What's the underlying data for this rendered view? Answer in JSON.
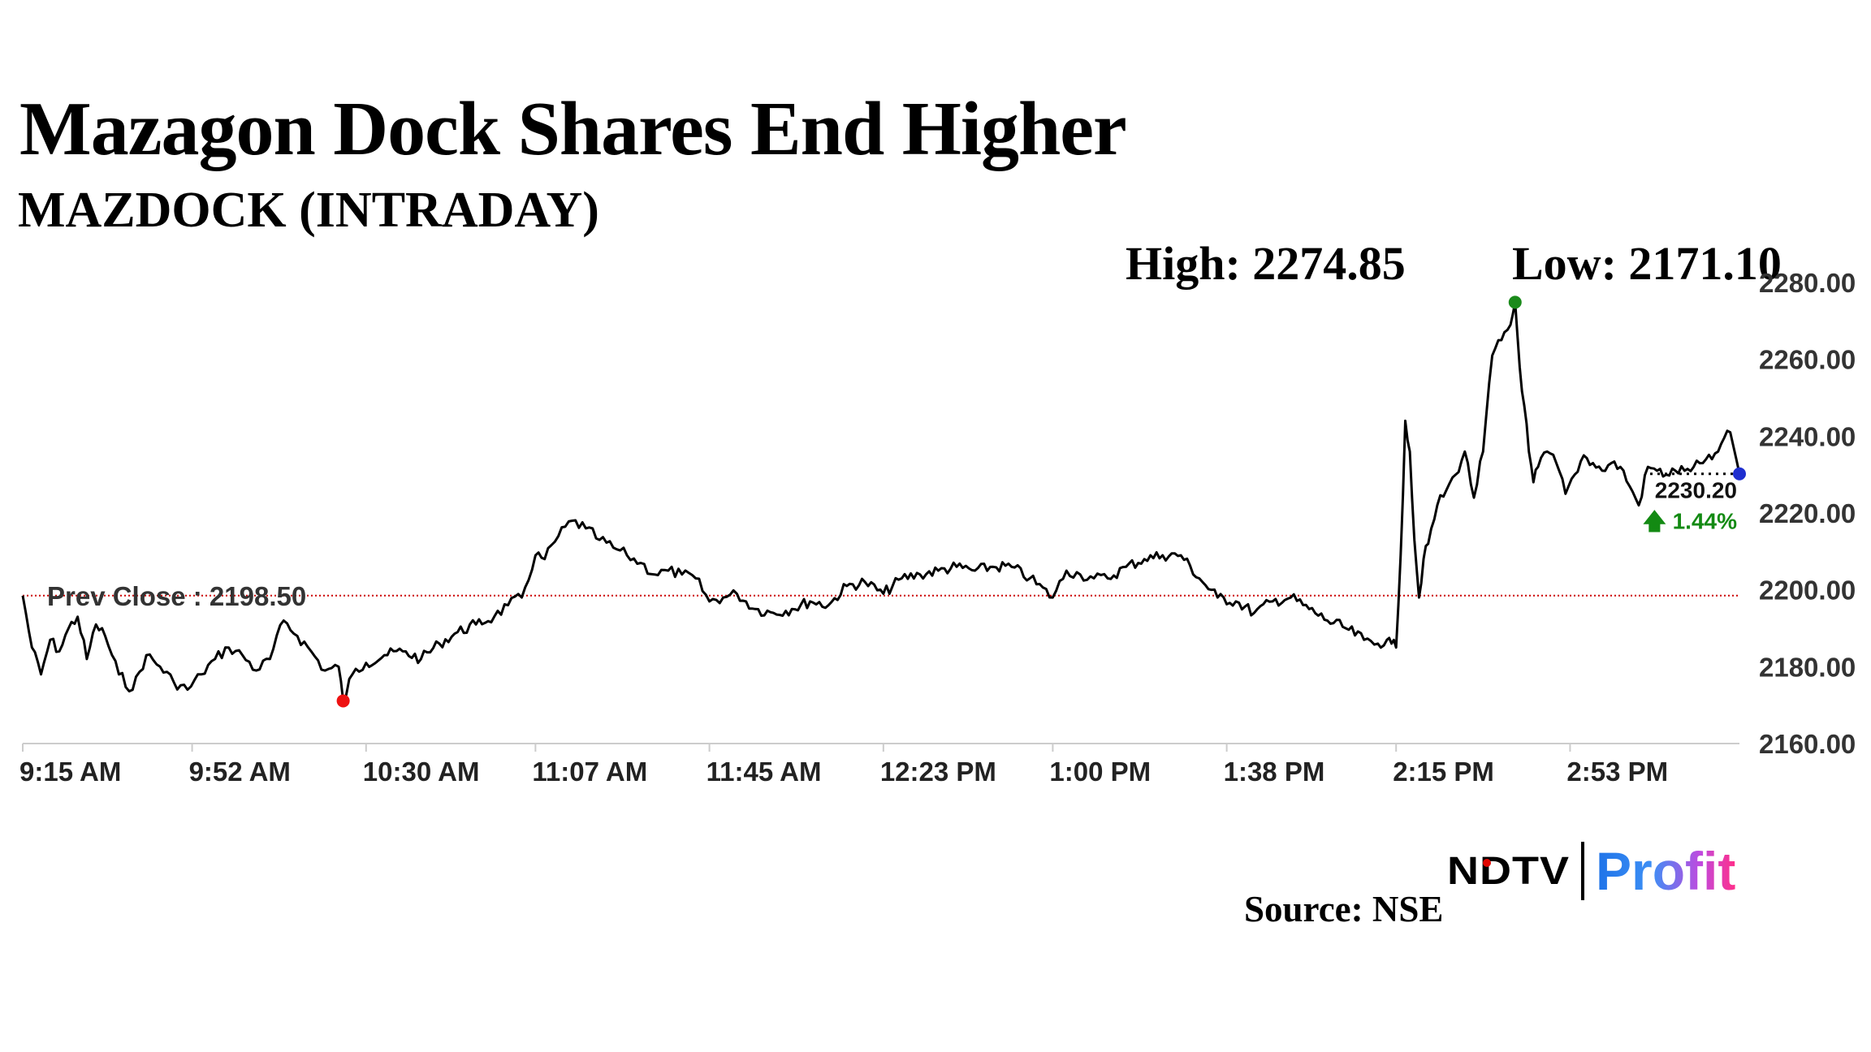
{
  "header": {
    "title": "Mazagon Dock Shares End Higher",
    "subtitle": "MAZDOCK (INTRADAY)",
    "high_label": "High: 2274.85",
    "low_label": "Low: 2171.10"
  },
  "footer": {
    "logo_ndtv": "NDTV",
    "logo_profit": "Profit",
    "source": "Source: NSE"
  },
  "colors": {
    "line": "#000000",
    "prev_close": "#cc0000",
    "high_marker": "#1a8a1a",
    "low_marker": "#ee1111",
    "last_marker": "#1f2fcf",
    "change_up": "#138a13",
    "axis": "#cccccc"
  },
  "chart_data": {
    "type": "line",
    "title": "Mazagon Dock Shares End Higher",
    "subtitle": "MAZDOCK (INTRADAY)",
    "xlabel": "",
    "ylabel": "",
    "ylim": [
      2160,
      2280
    ],
    "y_ticks": [
      "2280.00",
      "2260.00",
      "2240.00",
      "2220.00",
      "2200.00",
      "2180.00",
      "2160.00"
    ],
    "x_ticks": [
      "9:15 AM",
      "9:52 AM",
      "10:30 AM",
      "11:07 AM",
      "11:45 AM",
      "12:23 PM",
      "1:00 PM",
      "1:38 PM",
      "2:15 PM",
      "2:53 PM"
    ],
    "time_range": [
      "9:15 AM",
      "3:30 PM"
    ],
    "grid": false,
    "prev_close": {
      "label": "Prev Close : 2198.50",
      "value": 2198.5
    },
    "high": {
      "value": 2274.85,
      "time": "2:41 PM"
    },
    "low": {
      "value": 2171.1,
      "time": "10:25 AM"
    },
    "last": {
      "label": "2230.20",
      "value": 2230.2,
      "time": "3:30 PM"
    },
    "change": {
      "label": "1.44%",
      "direction": "up"
    },
    "series": [
      {
        "x": [
          "9:15",
          "9:17",
          "9:19",
          "9:21",
          "9:23",
          "9:25",
          "9:27",
          "9:29",
          "9:31",
          "9:33",
          "9:36",
          "9:39",
          "9:42",
          "9:45",
          "9:48",
          "9:51",
          "9:54",
          "9:57",
          "10:00",
          "10:03",
          "10:06",
          "10:09",
          "10:12",
          "10:15",
          "10:18",
          "10:21",
          "10:24",
          "10:25",
          "10:27",
          "10:30",
          "10:34",
          "10:38",
          "10:42",
          "10:46",
          "10:50",
          "10:54",
          "10:58",
          "11:01",
          "11:04",
          "11:07",
          "11:09",
          "11:12",
          "11:15",
          "11:18",
          "11:21",
          "11:24",
          "11:27",
          "11:30",
          "11:33",
          "11:36",
          "11:39",
          "11:42",
          "11:45",
          "11:48",
          "11:51",
          "11:55",
          "11:59",
          "12:03",
          "12:07",
          "12:11",
          "12:15",
          "12:19",
          "12:23",
          "12:27",
          "12:31",
          "12:35",
          "12:39",
          "12:43",
          "12:47",
          "12:51",
          "12:55",
          "1:00",
          "1:03",
          "1:06",
          "1:09",
          "1:12",
          "1:16",
          "1:20",
          "1:24",
          "1:28",
          "1:32",
          "1:36",
          "1:40",
          "1:44",
          "1:48",
          "1:52",
          "1:56",
          "2:00",
          "2:04",
          "2:08",
          "2:11",
          "2:13",
          "2:14",
          "2:15",
          "2:16",
          "2:17",
          "2:18",
          "2:19",
          "2:20",
          "2:21",
          "2:22",
          "2:24",
          "2:26",
          "2:28",
          "2:30",
          "2:32",
          "2:34",
          "2:36",
          "2:38",
          "2:40",
          "2:41",
          "2:42",
          "2:43",
          "2:44",
          "2:45",
          "2:46",
          "2:48",
          "2:50",
          "2:52",
          "2:54",
          "2:56",
          "2:58",
          "3:00",
          "3:02",
          "3:04",
          "3:06",
          "3:08",
          "3:10",
          "3:12",
          "3:14",
          "3:16",
          "3:18",
          "3:20",
          "3:22",
          "3:24",
          "3:26",
          "3:28",
          "3:30"
        ],
        "y": [
          2198.5,
          2185,
          2178,
          2187,
          2184,
          2190,
          2193,
          2182,
          2191,
          2188,
          2178,
          2174,
          2183,
          2180,
          2176,
          2174,
          2178,
          2182,
          2185,
          2183,
          2179,
          2182,
          2192,
          2188,
          2184,
          2179,
          2180,
          2171.1,
          2178,
          2181,
          2183,
          2184,
          2182,
          2186,
          2189,
          2191,
          2193,
          2196,
          2198,
          2209,
          2208,
          2214,
          2218,
          2216,
          2213,
          2211,
          2209,
          2207,
          2204,
          2205,
          2204,
          2203,
          2197,
          2198,
          2199,
          2195,
          2194,
          2195,
          2197,
          2196,
          2201,
          2202,
          2199,
          2203,
          2204,
          2205,
          2206,
          2205,
          2206,
          2206,
          2203,
          2198,
          2205,
          2204,
          2203,
          2203,
          2206,
          2208,
          2209,
          2209,
          2203,
          2198,
          2197,
          2194,
          2197,
          2198,
          2195,
          2192,
          2190,
          2187,
          2186,
          2187,
          2186,
          2185,
          2209,
          2244,
          2236,
          2213,
          2198,
          2208,
          2212,
          2222,
          2226,
          2230,
          2236,
          2224,
          2236,
          2261,
          2265,
          2269,
          2274.85,
          2258,
          2248,
          2236,
          2228,
          2232,
          2236,
          2233,
          2225,
          2230,
          2235,
          2233,
          2231,
          2233,
          2232,
          2227,
          2222,
          2232,
          2231,
          2230,
          2231,
          2231,
          2232,
          2233,
          2234,
          2238,
          2241,
          2230.2
        ]
      }
    ]
  }
}
